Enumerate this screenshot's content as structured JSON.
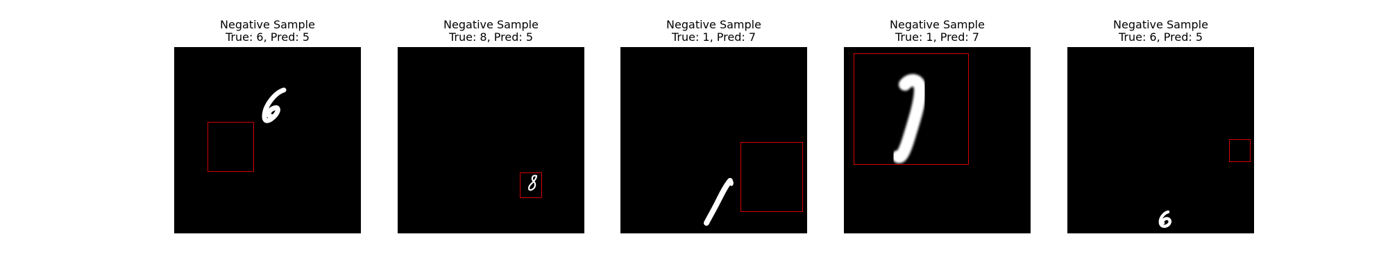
{
  "colors": {
    "background": "#ffffff",
    "image_background": "#000000",
    "digit": "#ffffff",
    "box": "#d40000"
  },
  "panels": [
    {
      "title": "Negative Sample",
      "label": "True: 6, Pred: 5",
      "true_digit": "6",
      "pred_digit": "5"
    },
    {
      "title": "Negative Sample",
      "label": "True: 8, Pred: 5",
      "true_digit": "8",
      "pred_digit": "5"
    },
    {
      "title": "Negative Sample",
      "label": "True: 1, Pred: 7",
      "true_digit": "1",
      "pred_digit": "7"
    },
    {
      "title": "Negative Sample",
      "label": "True: 1, Pred: 7",
      "true_digit": "1",
      "pred_digit": "7"
    },
    {
      "title": "Negative Sample",
      "label": "True: 6, Pred: 5",
      "true_digit": "6",
      "pred_digit": "5"
    }
  ]
}
